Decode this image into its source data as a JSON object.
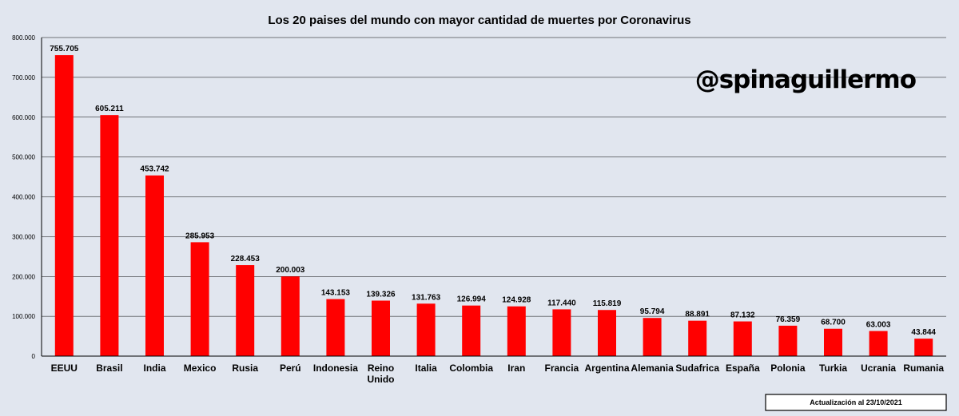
{
  "chart_data": {
    "type": "bar",
    "title": "Los 20 paises del mundo con mayor cantidad de muertes por Coronavirus",
    "categories": [
      "EEUU",
      "Brasil",
      "India",
      "Mexico",
      "Rusia",
      "Perú",
      "Indonesia",
      "Reino Unido",
      "Italia",
      "Colombia",
      "Iran",
      "Francia",
      "Argentina",
      "Alemania",
      "Sudafrica",
      "España",
      "Polonia",
      "Turkia",
      "Ucrania",
      "Rumania"
    ],
    "values": [
      755705,
      605211,
      453742,
      285953,
      228453,
      200003,
      143153,
      139326,
      131763,
      126994,
      124928,
      117440,
      115819,
      95794,
      88891,
      87132,
      76359,
      68700,
      63003,
      43844
    ],
    "value_labels": [
      "755.705",
      "605.211",
      "453.742",
      "285.953",
      "228.453",
      "200.003",
      "143.153",
      "139.326",
      "131.763",
      "126.994",
      "124.928",
      "117.440",
      "115.819",
      "95.794",
      "88.891",
      "87.132",
      "76.359",
      "68.700",
      "63.003",
      "43.844"
    ],
    "category_label_lines": [
      [
        "EEUU"
      ],
      [
        "Brasil"
      ],
      [
        "India"
      ],
      [
        "Mexico"
      ],
      [
        "Rusia"
      ],
      [
        "Perú"
      ],
      [
        "Indonesia"
      ],
      [
        "Reino",
        "Unido"
      ],
      [
        "Italia"
      ],
      [
        "Colombia"
      ],
      [
        "Iran"
      ],
      [
        "Francia"
      ],
      [
        "Argentina"
      ],
      [
        "Alemania"
      ],
      [
        "Sudafrica"
      ],
      [
        "España"
      ],
      [
        "Polonia"
      ],
      [
        "Turkia"
      ],
      [
        "Ucrania"
      ],
      [
        "Rumania"
      ]
    ],
    "ylim": [
      0,
      800000
    ],
    "yticks": [
      0,
      100000,
      200000,
      300000,
      400000,
      500000,
      600000,
      700000,
      800000
    ],
    "ytick_labels": [
      "0",
      "100.000",
      "200.000",
      "300.000",
      "400.000",
      "500.000",
      "600.000",
      "700.000",
      "800.000"
    ],
    "xlabel": "",
    "ylabel": "",
    "grid": true,
    "legend": "none"
  },
  "watermark": "@spinaguillermo",
  "update_note": "Actualización al 23/10/2021",
  "colors": {
    "bar": "#ff0000",
    "background": "#e1e6ef",
    "gridline": "#000000"
  }
}
